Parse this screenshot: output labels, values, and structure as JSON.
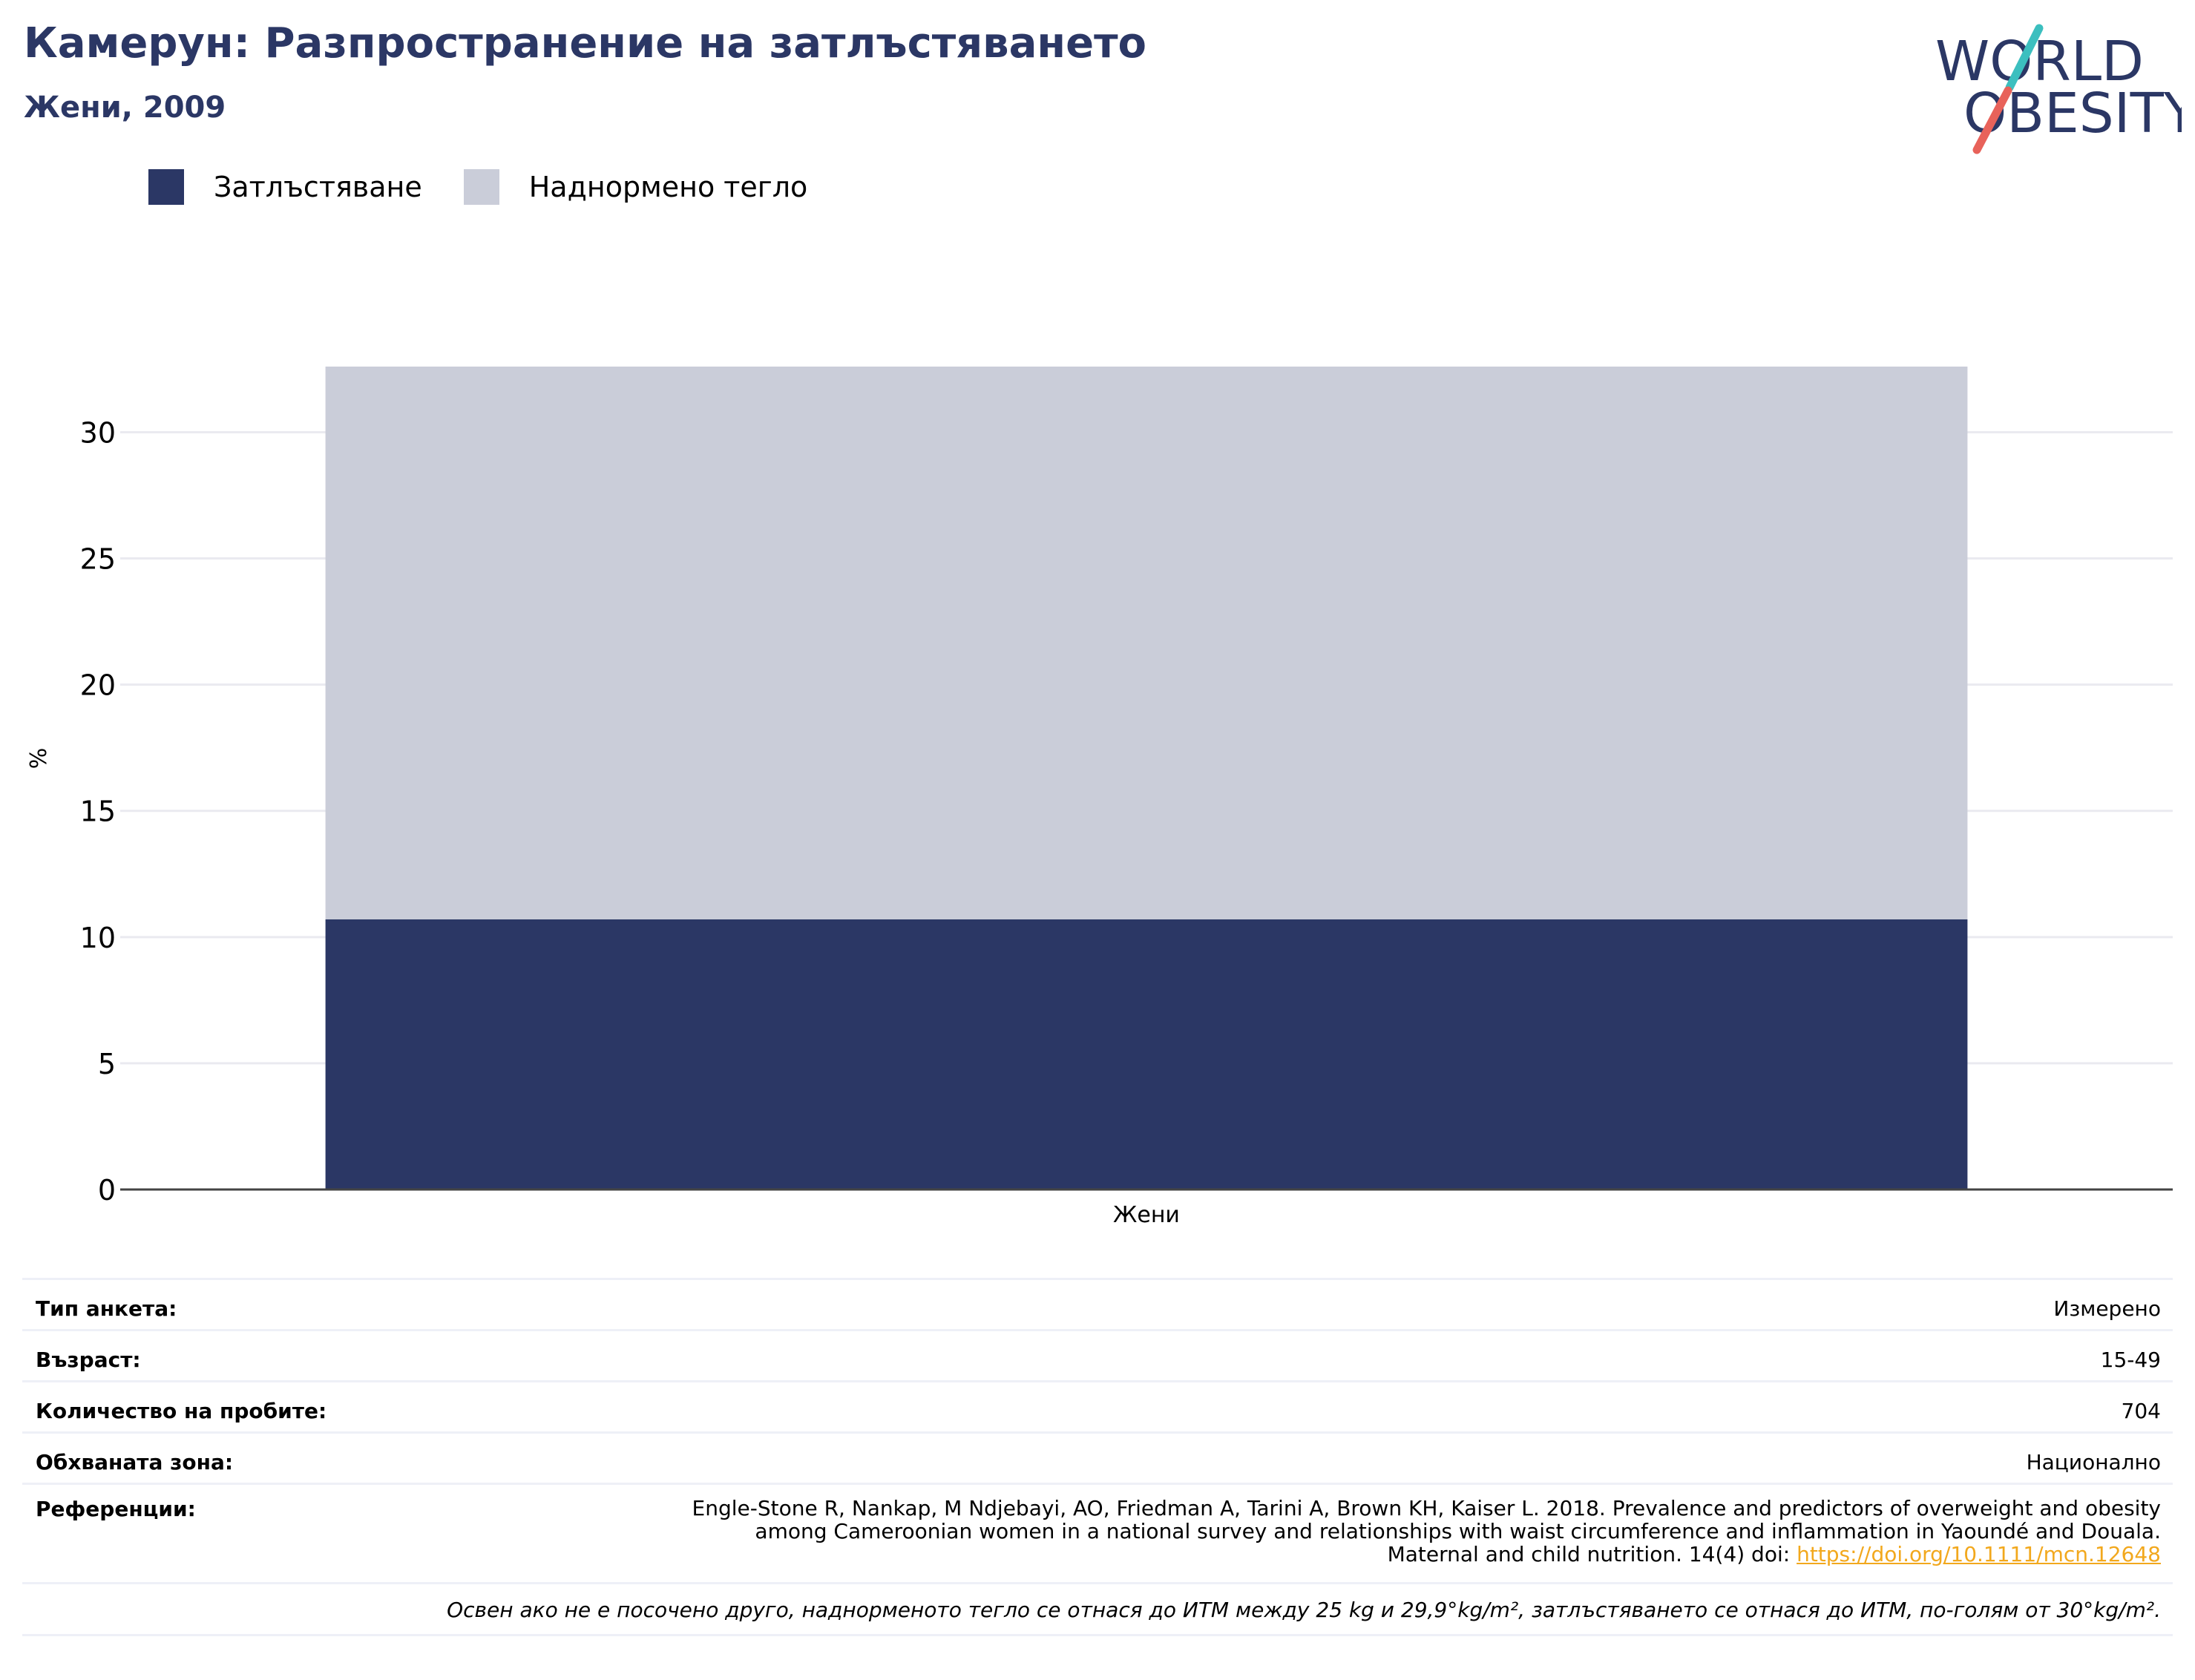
{
  "header": {
    "title": "Камерун: Разпространение на затлъстяването",
    "subtitle": "Жени, 2009"
  },
  "logo": {
    "line1": "WORLD",
    "line2": "OBESITY",
    "colors": {
      "text": "#2b3765",
      "slash_top": "#3cbfbf",
      "slash_bottom": "#e8625a"
    }
  },
  "colors": {
    "obesity": "#2b3765",
    "overweight": "#cacdd9",
    "grid": "#eaeaf0",
    "axis": "#444444",
    "link": "#f2a81d"
  },
  "chart_data": {
    "type": "bar",
    "stacked": true,
    "categories": [
      "Жени"
    ],
    "series": [
      {
        "name": "Затлъстяване",
        "values": [
          10.7
        ],
        "color": "#2b3765"
      },
      {
        "name": "Наднормено тегло",
        "values": [
          21.9
        ],
        "color": "#cacdd9"
      }
    ],
    "ylabel": "%",
    "ylim": [
      0,
      32.6
    ],
    "yticks": [
      0,
      5,
      10,
      15,
      20,
      25,
      30
    ],
    "grid": true,
    "legend_position": "top-left"
  },
  "info": {
    "survey_type": {
      "label": "Тип анкета:",
      "value": "Измерено"
    },
    "age": {
      "label": "Възраст:",
      "value": "15-49"
    },
    "sample_size": {
      "label": "Количество на пробите:",
      "value": "704"
    },
    "area": {
      "label": "Обхваната зона:",
      "value": "Национално"
    },
    "references": {
      "label": "Референции:",
      "line1": "Engle-Stone R, Nankap, M Ndjebayi, AO, Friedman A, Tarini A, Brown KH, Kaiser L. 2018. Prevalence and predictors of overweight and obesity",
      "line2": "among Cameroonian women in a national survey and relationships with waist circumference and inflammation in Yaoundé and Douala.",
      "line3": "Maternal and child nutrition. 14(4) doi: ",
      "link": "https://doi.org/10.1111/mcn.12648"
    },
    "note": "Освен ако не е посочено друго, наднорменото тегло се отнася до ИТМ между 25 kg и 29,9°kg/m², затлъстяването се отнася до ИТМ, по-голям от 30°kg/m²."
  }
}
